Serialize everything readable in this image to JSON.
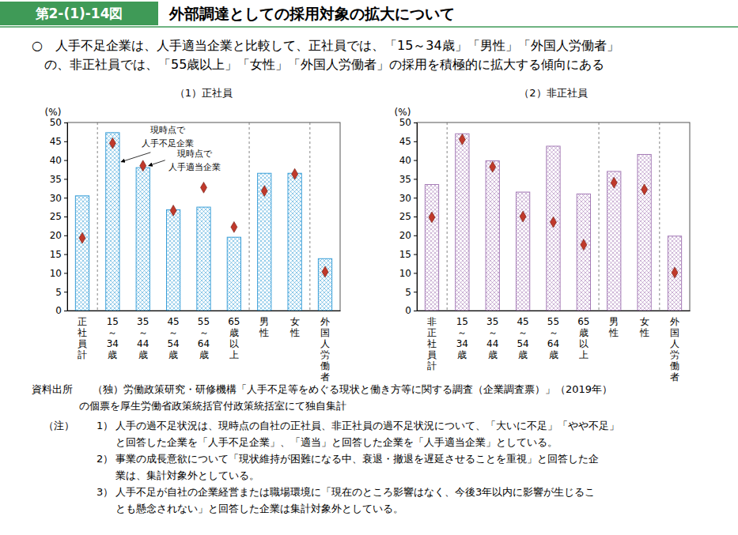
{
  "figure_number": "第2-(1)-14図",
  "figure_title": "外部調達としての採用対象の拡大について",
  "summary": [
    "○　人手不足企業は、人手適当企業と比較して、正社員では、「15～34歳」「男性」「外国人労働者」",
    "の、非正社員では、「55歳以上」「女性」「外国人労働者」の採用を積極的に拡大する傾向にある"
  ],
  "source_label": "資料出所",
  "source": [
    "（独）労働政策研究・研修機構「人手不足等をめぐる現状と働き方等に関する調査（企業調査票）」（2019年）",
    "の個票を厚生労働省政策統括官付政策統括室にて独自集計"
  ],
  "notes_label": "（注）",
  "notes": [
    {
      "number": "1）",
      "lines": [
        "人手の過不足状況は、現時点の自社の正社員、非正社員の過不足状況について、「大いに不足」「やや不足」",
        "と回答した企業を「人手不足企業」、「適当」と回答した企業を「人手適当企業」としている。"
      ]
    },
    {
      "number": "2）",
      "lines": [
        "事業の成長意欲について「現状維持が困難になる中、衰退・撤退を遅延させることを重視」と回答した企",
        "業は、集計対象外としている。"
      ]
    },
    {
      "number": "3）",
      "lines": [
        "人手不足が自社の企業経営または職場環境に「現在のところ影響はなく、今後3年以内に影響が生じるこ",
        "とも懸念されない」と回答した企業は集計対象外としている。"
      ]
    }
  ],
  "chart_data": [
    {
      "type": "bar",
      "title": "（1）正社員",
      "y_label": "(%)",
      "categories": [
        "正社員計",
        "15～34歳",
        "35～44歳",
        "45～54歳",
        "55～64歳",
        "65歳以上",
        "男性",
        "女性",
        "外国人労働者"
      ],
      "series": [
        {
          "name": "現時点で人手不足企業",
          "type": "bar",
          "color": "#3a9fd8",
          "values": [
            30.5,
            47.3,
            38.0,
            26.8,
            27.5,
            19.5,
            36.5,
            36.5,
            13.8
          ]
        },
        {
          "name": "現時点で人手適当企業",
          "type": "scatter",
          "marker": "diamond",
          "color": "#c0392b",
          "values": [
            19.3,
            44.5,
            38.5,
            26.6,
            32.7,
            22.2,
            31.8,
            36.3,
            10.3
          ]
        }
      ],
      "ylim": [
        0,
        50
      ],
      "yticks": [
        0,
        5,
        10,
        15,
        20,
        25,
        30,
        35,
        40,
        45,
        50
      ],
      "grid": false
    },
    {
      "type": "bar",
      "title": "（2）非正社員",
      "y_label": "(%)",
      "categories": [
        "非正社員計",
        "15～34歳",
        "35～44歳",
        "45～54歳",
        "55～64歳",
        "65歳以上",
        "男性",
        "女性",
        "外国人労働者"
      ],
      "series": [
        {
          "type": "bar",
          "color": "#a57bb6",
          "values": [
            33.5,
            47.0,
            39.8,
            31.5,
            43.7,
            31.0,
            37.0,
            41.5,
            19.8
          ]
        },
        {
          "type": "scatter",
          "marker": "diamond",
          "color": "#c0392b",
          "values": [
            24.8,
            45.5,
            38.2,
            25.0,
            23.5,
            17.5,
            34.0,
            32.2,
            10.1
          ]
        }
      ],
      "ylim": [
        0,
        50
      ],
      "yticks": [
        0,
        5,
        10,
        15,
        20,
        25,
        30,
        35,
        40,
        45,
        50
      ],
      "grid": false
    }
  ]
}
